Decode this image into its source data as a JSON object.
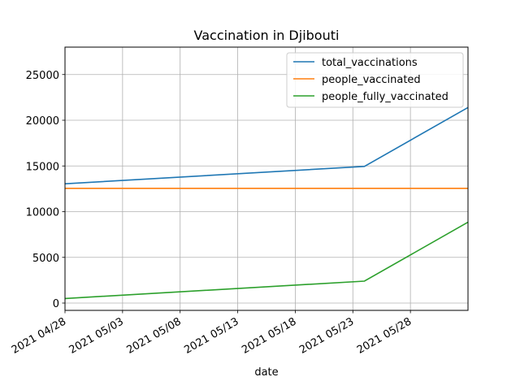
{
  "chart_data": {
    "type": "line",
    "title": "Vaccination in Djibouti",
    "xlabel": "date",
    "ylabel": "",
    "x_tick_labels": [
      "2021 04/28",
      "2021 05/03",
      "2021 05/08",
      "2021 05/13",
      "2021 05/18",
      "2021 05/23",
      "2021 05/28"
    ],
    "y_tick_labels": [
      "0",
      "5000",
      "10000",
      "15000",
      "20000",
      "25000"
    ],
    "xlim": [
      "2021-04-28",
      "2021-06-02"
    ],
    "ylim": [
      -800,
      28000
    ],
    "grid": true,
    "legend_position": "top-right",
    "series": [
      {
        "name": "total_vaccinations",
        "color": "#1f77b4",
        "points": [
          [
            "2021-04-28",
            13050
          ],
          [
            "2021-05-24",
            14950
          ],
          [
            "2021-06-02",
            21400
          ]
        ]
      },
      {
        "name": "people_vaccinated",
        "color": "#ff7f0e",
        "points": [
          [
            "2021-04-28",
            12550
          ],
          [
            "2021-05-24",
            12550
          ],
          [
            "2021-06-02",
            12550
          ]
        ]
      },
      {
        "name": "people_fully_vaccinated",
        "color": "#2ca02c",
        "points": [
          [
            "2021-04-28",
            500
          ],
          [
            "2021-05-24",
            2400
          ],
          [
            "2021-06-02",
            8850
          ]
        ]
      }
    ]
  }
}
